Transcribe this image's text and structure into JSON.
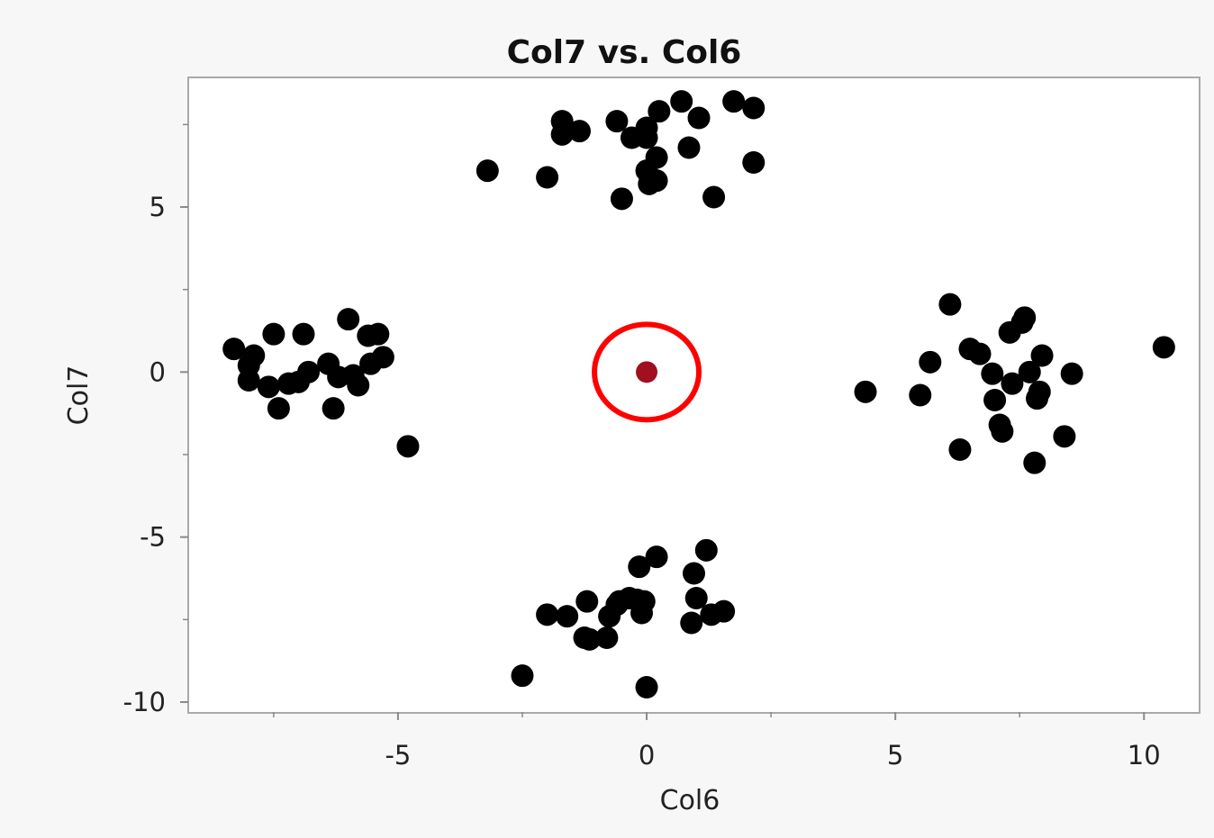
{
  "chart_data": {
    "type": "scatter",
    "title": "Col7 vs. Col6",
    "xlabel": "Col6",
    "ylabel": "Col7",
    "xlim": [
      -9.2,
      11.1
    ],
    "ylim": [
      -10.3,
      8.9
    ],
    "x_ticks": [
      -5,
      0,
      5,
      10
    ],
    "x_tick_labels": [
      "-5",
      "0",
      "5",
      "10"
    ],
    "y_ticks": [
      5,
      0,
      -5,
      -10
    ],
    "y_tick_labels": [
      "5",
      "0",
      "-5",
      "-10"
    ],
    "x_minor_ticks": [
      -7.5,
      -2.5,
      2.5,
      7.5
    ],
    "y_minor_ticks": [
      7.5,
      2.5,
      -2.5,
      -7.5
    ],
    "grid": false,
    "point_color": "#000000",
    "highlight_color": "#a0101e",
    "circle_color": "#ff0000",
    "series": [
      {
        "points": [
          [
            -3.2,
            6.1
          ],
          [
            -2.0,
            5.9
          ],
          [
            -1.7,
            7.6
          ],
          [
            -1.7,
            7.2
          ],
          [
            -1.35,
            7.3
          ],
          [
            -0.6,
            7.6
          ],
          [
            -0.3,
            7.1
          ],
          [
            0.0,
            7.4
          ],
          [
            0.0,
            7.1
          ],
          [
            0.0,
            6.1
          ],
          [
            0.2,
            6.5
          ],
          [
            0.2,
            5.8
          ],
          [
            0.05,
            5.7
          ],
          [
            -0.5,
            5.25
          ],
          [
            0.25,
            7.9
          ],
          [
            0.7,
            8.2
          ],
          [
            0.85,
            6.8
          ],
          [
            1.05,
            7.7
          ],
          [
            1.75,
            8.2
          ],
          [
            2.15,
            8.0
          ],
          [
            2.15,
            6.35
          ],
          [
            1.35,
            5.3
          ],
          [
            -8.3,
            0.7
          ],
          [
            -7.9,
            0.5
          ],
          [
            -8.0,
            0.2
          ],
          [
            -8.0,
            -0.25
          ],
          [
            -7.6,
            -0.45
          ],
          [
            -7.5,
            1.15
          ],
          [
            -7.4,
            -1.1
          ],
          [
            -7.2,
            -0.35
          ],
          [
            -7.0,
            -0.3
          ],
          [
            -6.9,
            1.15
          ],
          [
            -6.8,
            0.0
          ],
          [
            -6.4,
            0.25
          ],
          [
            -6.3,
            -1.1
          ],
          [
            -6.2,
            -0.15
          ],
          [
            -6.0,
            1.6
          ],
          [
            -5.9,
            -0.1
          ],
          [
            -5.8,
            -0.4
          ],
          [
            -5.6,
            1.1
          ],
          [
            -5.55,
            0.25
          ],
          [
            -5.4,
            1.15
          ],
          [
            -5.3,
            0.45
          ],
          [
            -4.8,
            -2.25
          ],
          [
            4.4,
            -0.6
          ],
          [
            5.5,
            -0.7
          ],
          [
            5.7,
            0.3
          ],
          [
            6.1,
            2.05
          ],
          [
            6.3,
            -2.35
          ],
          [
            6.5,
            0.7
          ],
          [
            6.7,
            0.55
          ],
          [
            6.95,
            -0.05
          ],
          [
            7.0,
            -0.85
          ],
          [
            7.1,
            -1.6
          ],
          [
            7.15,
            -1.8
          ],
          [
            7.3,
            1.2
          ],
          [
            7.35,
            -0.35
          ],
          [
            7.55,
            1.5
          ],
          [
            7.6,
            1.65
          ],
          [
            7.7,
            0.0
          ],
          [
            7.8,
            -2.75
          ],
          [
            7.85,
            -0.8
          ],
          [
            7.9,
            -0.6
          ],
          [
            7.95,
            0.5
          ],
          [
            8.4,
            -1.95
          ],
          [
            8.55,
            -0.05
          ],
          [
            10.4,
            0.75
          ],
          [
            -2.5,
            -9.2
          ],
          [
            -2.0,
            -7.35
          ],
          [
            -1.6,
            -7.4
          ],
          [
            -1.2,
            -6.95
          ],
          [
            -1.25,
            -8.05
          ],
          [
            -1.15,
            -8.1
          ],
          [
            -0.8,
            -8.05
          ],
          [
            -0.75,
            -7.4
          ],
          [
            -0.6,
            -7.05
          ],
          [
            -0.55,
            -6.95
          ],
          [
            -0.35,
            -6.85
          ],
          [
            -0.2,
            -6.9
          ],
          [
            -0.15,
            -5.9
          ],
          [
            -0.1,
            -7.3
          ],
          [
            -0.05,
            -6.95
          ],
          [
            0.2,
            -5.6
          ],
          [
            0.0,
            -9.55
          ],
          [
            0.9,
            -7.6
          ],
          [
            0.95,
            -6.1
          ],
          [
            1.0,
            -6.85
          ],
          [
            1.2,
            -5.4
          ],
          [
            1.3,
            -7.35
          ],
          [
            1.55,
            -7.25
          ]
        ]
      }
    ],
    "highlight_point": [
      0.0,
      0.0
    ]
  }
}
